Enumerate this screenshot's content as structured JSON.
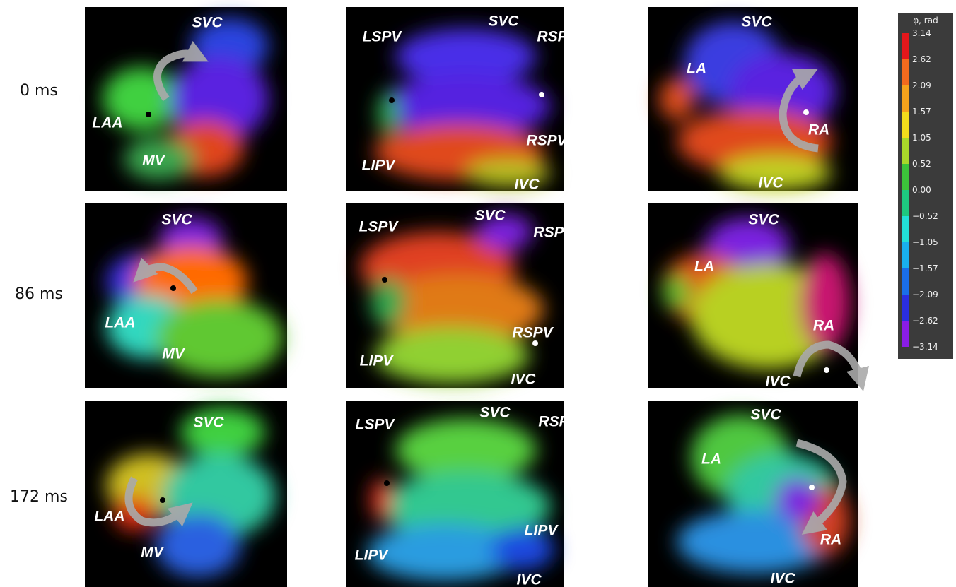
{
  "rows": [
    {
      "label": "0 ms",
      "panels": [
        {
          "labels": [
            "SVC",
            "LAA",
            "MV"
          ]
        },
        {
          "labels": [
            "LSPV",
            "SVC",
            "RSPV",
            "RSPV",
            "LIPV",
            "IVC"
          ]
        },
        {
          "labels": [
            "SVC",
            "LA",
            "RA",
            "IVC"
          ]
        }
      ]
    },
    {
      "label": "86 ms",
      "panels": [
        {
          "labels": [
            "SVC",
            "LAA",
            "MV"
          ]
        },
        {
          "labels": [
            "LSPV",
            "SVC",
            "RSPV",
            "RSPV",
            "LIPV",
            "IVC"
          ]
        },
        {
          "labels": [
            "SVC",
            "LA",
            "RA",
            "IVC"
          ]
        }
      ]
    },
    {
      "label": "172 ms",
      "panels": [
        {
          "labels": [
            "SVC",
            "LAA",
            "MV"
          ]
        },
        {
          "labels": [
            "LSPV",
            "SVC",
            "RSPV",
            "LIPV",
            "LIPV",
            "IVC"
          ]
        },
        {
          "labels": [
            "SVC",
            "LA",
            "RA",
            "IVC"
          ]
        }
      ]
    }
  ],
  "colorbar": {
    "title": "φ, rad",
    "ticks": [
      "3.14",
      "2.62",
      "2.09",
      "1.57",
      "1.05",
      "0.52",
      "0.00",
      "−0.52",
      "−1.05",
      "−1.57",
      "−2.09",
      "−2.62",
      "−3.14"
    ]
  }
}
